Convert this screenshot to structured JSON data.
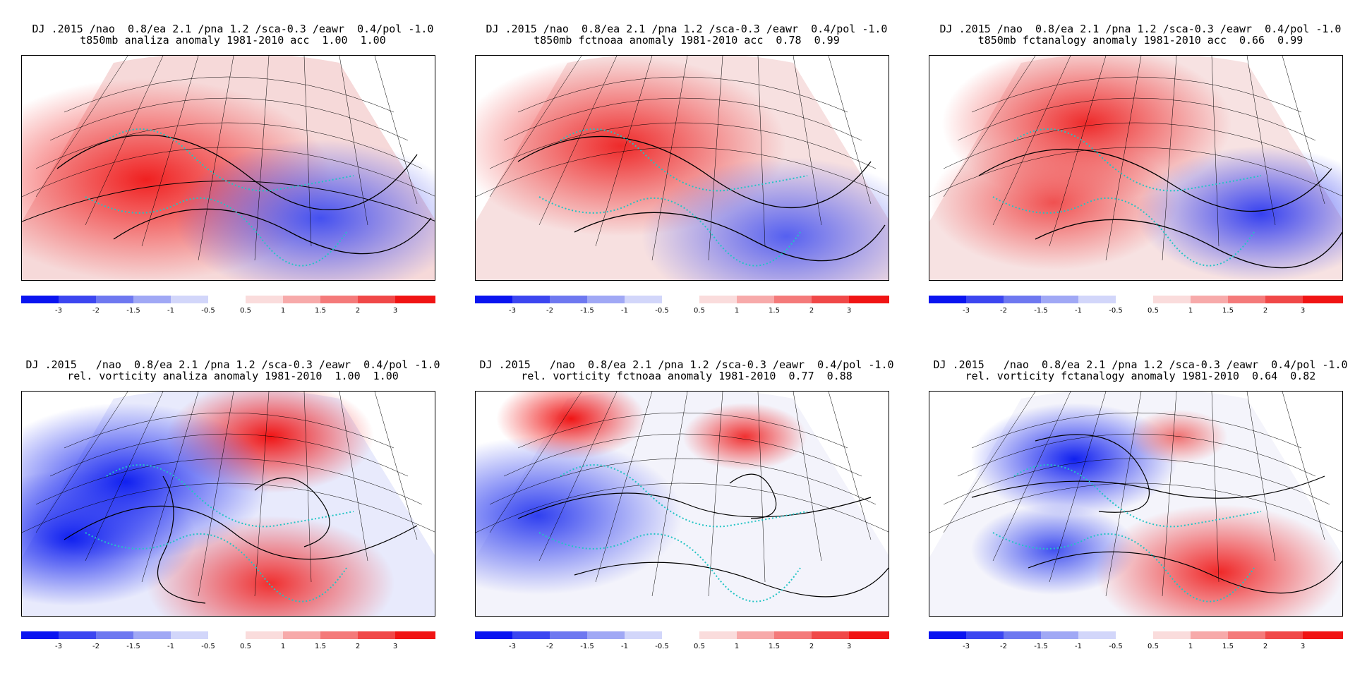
{
  "panels": [
    {
      "line1": "DJ .2015 /nao  0.8/ea 2.1 /pna 1.2 /sca-0.3 /eawr  0.4/pol -1.0",
      "line2": "t850mb analiza anomaly 1981-2010 acc  1.00  1.00"
    },
    {
      "line1": "DJ .2015 /nao  0.8/ea 2.1 /pna 1.2 /sca-0.3 /eawr  0.4/pol -1.0",
      "line2": "t850mb fctnoaa anomaly 1981-2010 acc  0.78  0.99"
    },
    {
      "line1": "DJ .2015 /nao  0.8/ea 2.1 /pna 1.2 /sca-0.3 /eawr  0.4/pol -1.0",
      "line2": "t850mb fctanalogy anomaly 1981-2010 acc  0.66  0.99"
    },
    {
      "line1": "DJ .2015   /nao  0.8/ea 2.1 /pna 1.2 /sca-0.3 /eawr  0.4/pol -1.0",
      "line2": "rel. vorticity analiza anomaly 1981-2010  1.00  1.00"
    },
    {
      "line1": "DJ .2015   /nao  0.8/ea 2.1 /pna 1.2 /sca-0.3 /eawr  0.4/pol -1.0",
      "line2": "rel. vorticity fctnoaa anomaly 1981-2010  0.77  0.88"
    },
    {
      "line1": "DJ .2015   /nao  0.8/ea 2.1 /pna 1.2 /sca-0.3 /eawr  0.4/pol -1.0",
      "line2": "rel. vorticity fctanalogy anomaly 1981-2010  0.64  0.82"
    }
  ],
  "colorbar": {
    "labels": [
      "-3",
      "-2",
      "-1.5",
      "-1",
      "-0.5",
      "0.5",
      "1",
      "1.5",
      "2",
      "3"
    ],
    "colors": [
      "#0a14f0",
      "#3c46f0",
      "#6e78f0",
      "#a0a8f5",
      "#d2d6fa",
      "#ffffff",
      "#fadcdc",
      "#f7aaaa",
      "#f47a7a",
      "#f04848",
      "#f01414"
    ]
  }
}
